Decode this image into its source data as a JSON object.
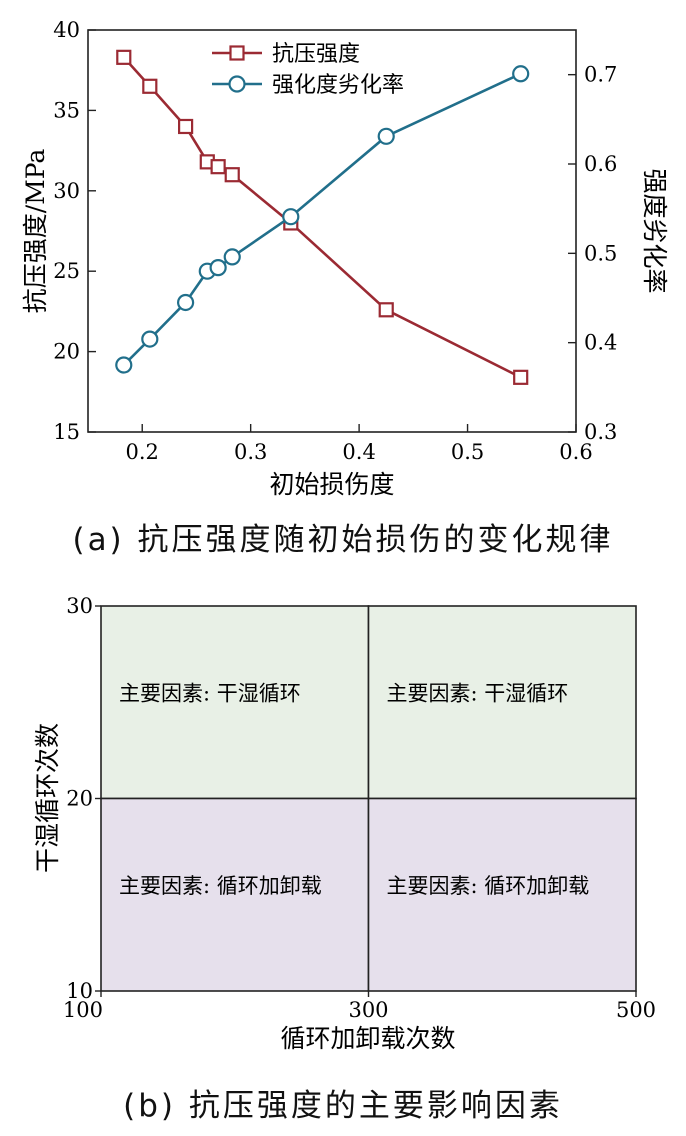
{
  "captions": {
    "a": "(a) 抗压强度随初始损伤的变化规律",
    "b": "(b) 抗压强度的主要影响因素"
  },
  "chart_data": [
    {
      "type": "line",
      "xlabel": "初始损伤度",
      "ylabel_left": "抗压强度/MPa",
      "ylabel_right": "强度劣化率",
      "xlim": [
        0.15,
        0.6
      ],
      "ylim_left": [
        15,
        40
      ],
      "ylim_right": [
        0.3,
        0.75
      ],
      "x_ticks": [
        "0.2",
        "0.3",
        "0.4",
        "0.5",
        "0.6"
      ],
      "y_left_ticks": [
        "15",
        "20",
        "25",
        "30",
        "35",
        "40"
      ],
      "y_right_ticks": [
        "0.3",
        "0.4",
        "0.5",
        "0.6",
        "0.7"
      ],
      "legend_position": "top-center",
      "series": [
        {
          "name": "抗压强度",
          "axis": "left",
          "marker": "square",
          "color": "#9b2a33",
          "points": [
            [
              0.183,
              38.3
            ],
            [
              0.207,
              36.5
            ],
            [
              0.24,
              34.0
            ],
            [
              0.26,
              31.8
            ],
            [
              0.27,
              31.5
            ],
            [
              0.283,
              31.0
            ],
            [
              0.337,
              28.0
            ],
            [
              0.425,
              22.6
            ],
            [
              0.549,
              18.4
            ]
          ]
        },
        {
          "name": "强化度劣化率",
          "axis": "right",
          "marker": "circle",
          "color": "#216f8b",
          "points": [
            [
              0.183,
              0.375
            ],
            [
              0.207,
              0.404
            ],
            [
              0.24,
              0.445
            ],
            [
              0.26,
              0.48
            ],
            [
              0.27,
              0.484
            ],
            [
              0.283,
              0.496
            ],
            [
              0.337,
              0.541
            ],
            [
              0.425,
              0.631
            ],
            [
              0.549,
              0.701
            ]
          ]
        }
      ]
    },
    {
      "type": "heatmap",
      "xlabel": "循环加卸载次数",
      "ylabel": "干湿循环次数",
      "x_ticks": [
        100,
        300,
        500
      ],
      "y_ticks": [
        10,
        20,
        30
      ],
      "xlim": [
        100,
        500
      ],
      "ylim": [
        10,
        30
      ],
      "regions": [
        {
          "x": [
            100,
            300
          ],
          "y": [
            20,
            30
          ],
          "label": "主要因素: 干湿循环",
          "color": "#e8f0e6"
        },
        {
          "x": [
            300,
            500
          ],
          "y": [
            20,
            30
          ],
          "label": "主要因素: 干湿循环",
          "color": "#e8f0e6"
        },
        {
          "x": [
            100,
            300
          ],
          "y": [
            10,
            20
          ],
          "label": "主要因素: 循环加卸载",
          "color": "#e6e0ec"
        },
        {
          "x": [
            300,
            500
          ],
          "y": [
            10,
            20
          ],
          "label": "主要因素: 循环加卸载",
          "color": "#e6e0ec"
        }
      ]
    }
  ]
}
